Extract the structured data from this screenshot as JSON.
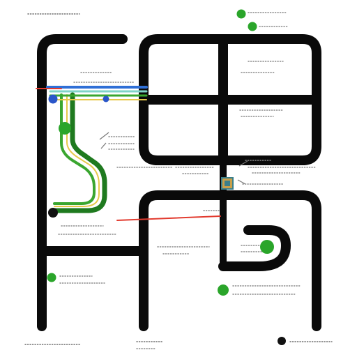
{
  "colors": {
    "background": "#ffffff",
    "frame": "#0a0a0a",
    "route_green": "#3aa62f",
    "route_green_dark": "#1f7a1f",
    "route_yellow": "#e6c94a",
    "route_blue": "#2f6fd6",
    "route_teal": "#7fd4c8",
    "red_line": "#e23b2f",
    "node_green": "#2aa52a",
    "node_blue": "#2a56c9",
    "node_black": "#111111",
    "marker_gold": "#caa04a",
    "marker_teal": "#3b7f8a"
  },
  "icons": {
    "green_node": "circle-green",
    "blue_node": "circle-blue",
    "black_node": "circle-black",
    "square_marker": "square-marker",
    "arrow_marker": "arrow-marker"
  }
}
